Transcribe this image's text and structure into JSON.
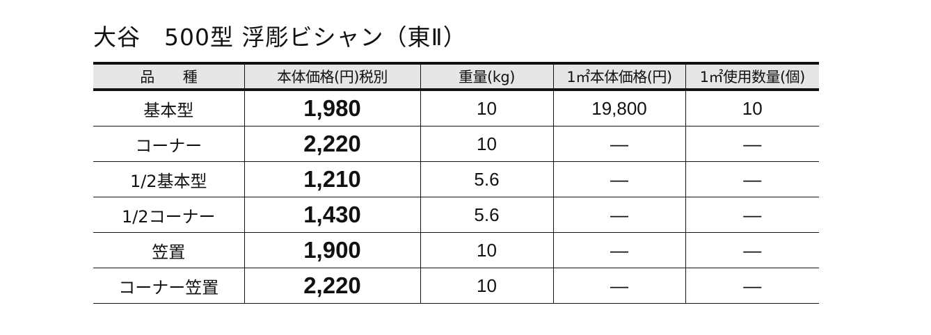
{
  "title": "大谷　500型 浮彫ビシャン（東Ⅱ）",
  "headers": [
    "品　　種",
    "本体価格(円)税別",
    "重量(kg)",
    "1㎡本体価格(円)",
    "1㎡使用数量(個)"
  ],
  "rows": [
    {
      "name": "基本型",
      "price": "1,980",
      "weight": "10",
      "sqm_price": "19,800",
      "sqm_qty": "10"
    },
    {
      "name": "コーナー",
      "price": "2,220",
      "weight": "10",
      "sqm_price": "—",
      "sqm_qty": "—"
    },
    {
      "name": "1/2基本型",
      "price": "1,210",
      "weight": "5.6",
      "sqm_price": "—",
      "sqm_qty": "—"
    },
    {
      "name": "1/2コーナー",
      "price": "1,430",
      "weight": "5.6",
      "sqm_price": "—",
      "sqm_qty": "—"
    },
    {
      "name": "笠置",
      "price": "1,900",
      "weight": "10",
      "sqm_price": "—",
      "sqm_qty": "—"
    },
    {
      "name": "コーナー笠置",
      "price": "2,220",
      "weight": "10",
      "sqm_price": "—",
      "sqm_qty": "—"
    }
  ]
}
